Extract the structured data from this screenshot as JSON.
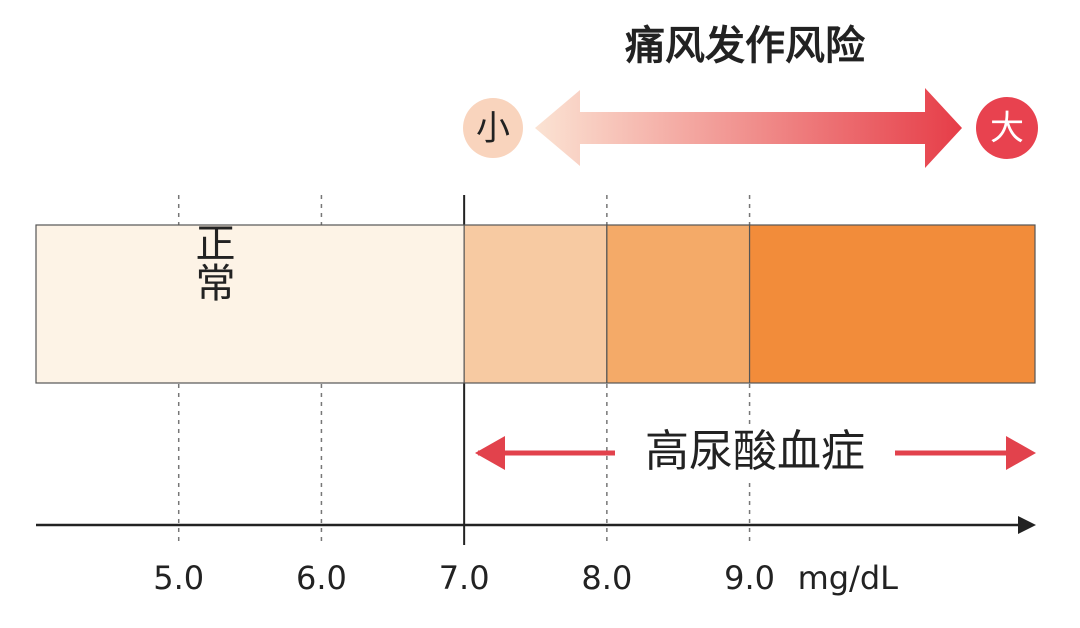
{
  "title": "痛风发作风险",
  "risk_low": "小",
  "risk_high": "大",
  "hyperuricemia": "高尿酸血症",
  "axis": {
    "unit": "mg/dL",
    "xlim": [
      4,
      11
    ],
    "xticks": [
      {
        "value": 5,
        "label": "5.0"
      },
      {
        "value": 6,
        "label": "6.0"
      },
      {
        "value": 7,
        "label": "7.0"
      },
      {
        "value": 8,
        "label": "8.0"
      },
      {
        "value": 9,
        "label": "9.0"
      }
    ]
  },
  "zones": [
    {
      "label": "正常",
      "from": 4,
      "to": 7,
      "color": "#fdf3e6"
    },
    {
      "from": 7,
      "to": 8,
      "color": "#f7caa2"
    },
    {
      "from": 8,
      "to": 9,
      "color": "#f4aa68"
    },
    {
      "from": 9,
      "to": 11,
      "color": "#f28c3a"
    }
  ]
}
